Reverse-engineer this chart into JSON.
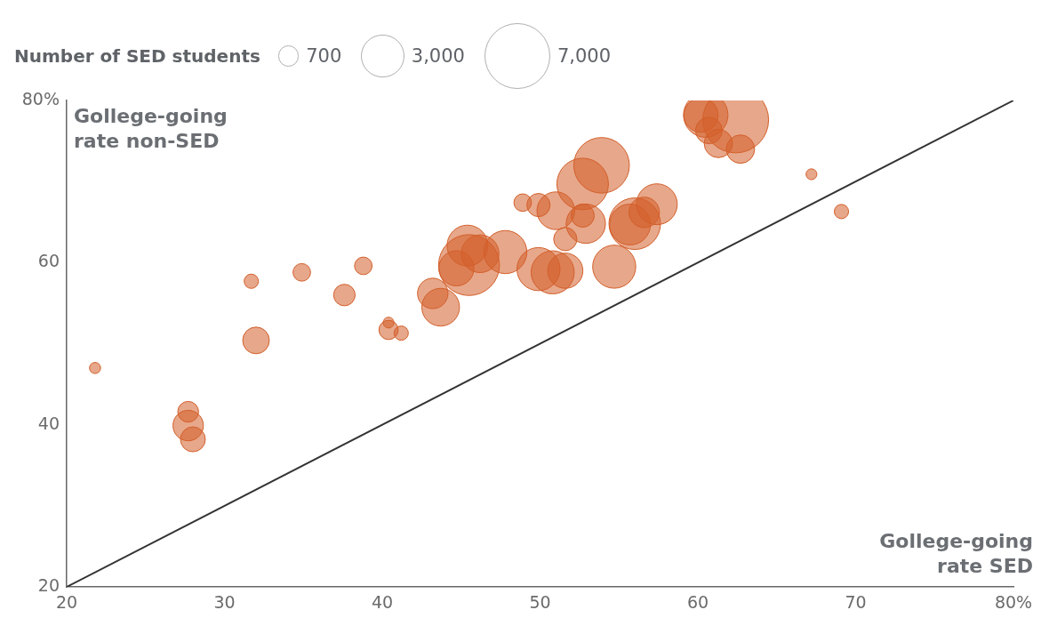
{
  "chart_data": {
    "type": "bubble",
    "xlabel": "Gollege-going rate SED",
    "ylabel": "Gollege-going rate non-SED",
    "legend_title": "Number of SED students",
    "size_legend": [
      700,
      {
        "value": 3000,
        "label": "3,000"
      },
      {
        "value": 7000,
        "label": "7,000"
      }
    ],
    "xlim": [
      20,
      80
    ],
    "xticks": [
      20,
      30,
      40,
      50,
      60,
      70,
      {
        "value": 80,
        "label": "80%"
      }
    ],
    "ylim": [
      20,
      80
    ],
    "yticks": [
      20,
      40,
      60,
      {
        "value": 80,
        "label": "80%"
      }
    ],
    "grid": false,
    "series": [
      {
        "color": "#d35f2a",
        "x": [
          21.8,
          27.7,
          27.7,
          28.0,
          31.7,
          32.0,
          34.9,
          37.6,
          38.8,
          40.4,
          40.4,
          41.2,
          43.2,
          43.7,
          44.7,
          45.5,
          45.4,
          46.2,
          47.8,
          48.9,
          49.9,
          51.0,
          52.7,
          53.9,
          52.7,
          52.9,
          51.6,
          49.9,
          50.8,
          51.6,
          54.7,
          56.0,
          55.7,
          56.6,
          57.4,
          60.2,
          60.5,
          60.7,
          61.3,
          62.4,
          62.7,
          67.2,
          69.1
        ],
        "values": [
          47.0,
          41.6,
          39.9,
          38.2,
          57.7,
          50.4,
          58.8,
          56.0,
          59.6,
          52.6,
          51.7,
          51.3,
          56.2,
          54.5,
          59.3,
          59.7,
          62.1,
          61.1,
          61.3,
          67.4,
          67.1,
          66.4,
          69.7,
          72.0,
          65.8,
          64.8,
          62.9,
          59.2,
          58.8,
          59.0,
          59.5,
          64.8,
          64.7,
          66.2,
          67.2,
          78.2,
          78.2,
          76.3,
          74.7,
          77.6,
          74.0,
          70.9,
          66.3
        ],
        "sizes": [
          200,
          700,
          1500,
          1000,
          330,
          1150,
          500,
          750,
          500,
          190,
          600,
          330,
          1500,
          2300,
          2000,
          6000,
          2700,
          2300,
          3000,
          500,
          870,
          2300,
          4300,
          5000,
          870,
          2500,
          870,
          3000,
          3000,
          2000,
          3000,
          4300,
          2700,
          1500,
          2700,
          1900,
          3200,
          1150,
          1300,
          7000,
          1300,
          190,
          330
        ]
      },
      {
        "type": "line",
        "color": "#333333",
        "x": [
          20,
          80
        ],
        "values": [
          20,
          80
        ]
      }
    ]
  }
}
